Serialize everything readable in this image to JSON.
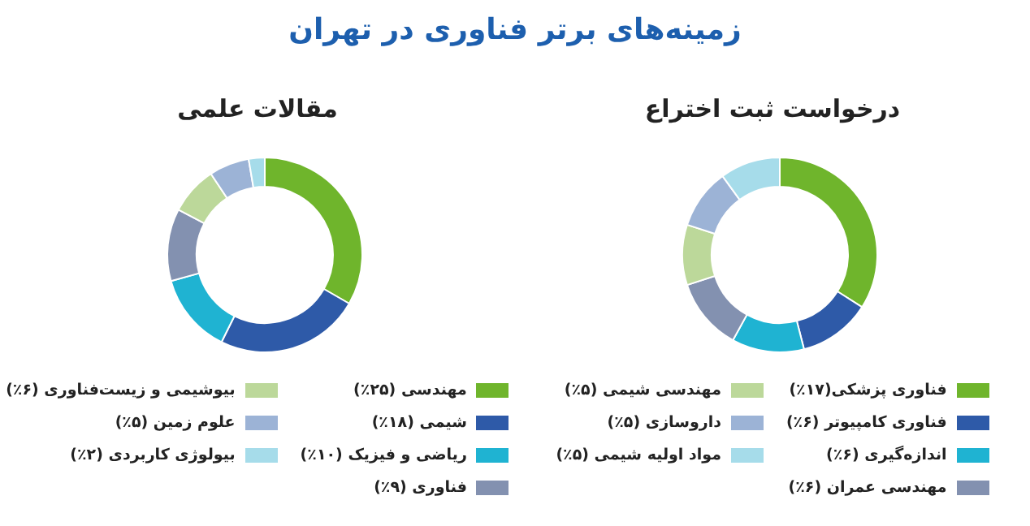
{
  "chart_data": [
    {
      "type": "donut",
      "title": "زمینه‌های برتر فناوری در تهران",
      "subtitle": "درخواست ثبت اختراع",
      "legend": "bottom",
      "categories": [
        "فناوری پزشکی(۱۷٪)",
        "فناوری کامپیوتر (۶٪)",
        "اندازه‌گیری (۶٪)",
        "مهندسی عمران (۶٪)",
        "مهندسی شیمی (۵٪)",
        "داروسازی (۵٪)",
        "مواد اولیه شیمی (۵٪)"
      ],
      "values": [
        17,
        6,
        6,
        6,
        5,
        5,
        5
      ],
      "colors": [
        "#6fb52c",
        "#2e5aa8",
        "#1fb3d2",
        "#8391b0",
        "#bcd89a",
        "#9cb3d6",
        "#a6dcea"
      ]
    },
    {
      "type": "donut",
      "title": "مقالات علمی",
      "legend": "bottom",
      "categories": [
        "مهندسی (۲۵٪)",
        "شیمی (۱۸٪)",
        "ریاضی و فیزیک (۱۰٪)",
        "فناوری (۹٪)",
        "بیوشیمی و زیست‌فناوری (۶٪)",
        "علوم زمین (۵٪)",
        "بیولوژی کاربردی (۲٪)"
      ],
      "values": [
        25,
        18,
        10,
        9,
        6,
        5,
        2
      ],
      "colors": [
        "#6fb52c",
        "#2e5aa8",
        "#1fb3d2",
        "#8391b0",
        "#bcd89a",
        "#9cb3d6",
        "#a6dcea"
      ]
    }
  ]
}
